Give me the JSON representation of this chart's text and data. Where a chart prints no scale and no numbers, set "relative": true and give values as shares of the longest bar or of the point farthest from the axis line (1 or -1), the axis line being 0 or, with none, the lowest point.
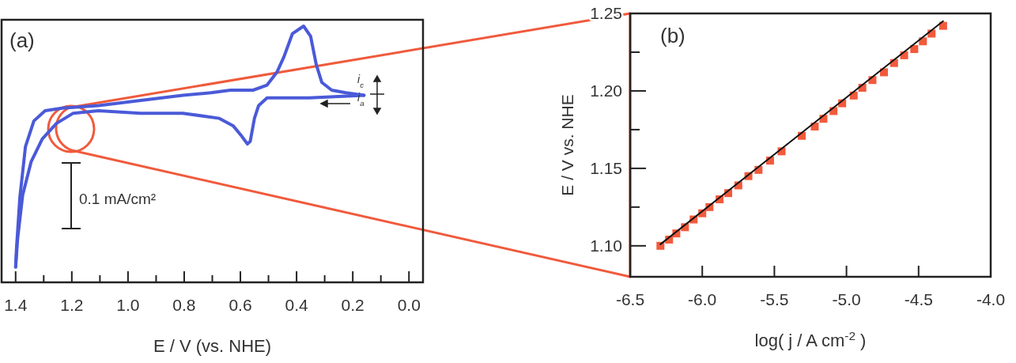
{
  "chart_data": [
    {
      "type": "line",
      "relative": true,
      "xlabel": "E / V (vs. NHE)",
      "tick_labels": "x",
      "annotations": [
        "(a)",
        "0.1 mA/cm²",
        "i$_{c}$",
        "i$_{a}$"
      ],
      "xlim": [
        1.45,
        -0.05
      ],
      "xticks": [
        {
          "value": 1.4,
          "label": "1.4"
        },
        {
          "value": 1.3,
          "label": null
        },
        {
          "value": 1.2,
          "label": "1.2"
        },
        {
          "value": 1.1,
          "label": null
        },
        {
          "value": 1.0,
          "label": "1.0"
        },
        {
          "value": 0.9,
          "label": null
        },
        {
          "value": 0.8,
          "label": "0.8"
        },
        {
          "value": 0.7,
          "label": null
        },
        {
          "value": 0.6,
          "label": "0.6"
        },
        {
          "value": 0.5,
          "label": null
        },
        {
          "value": 0.4,
          "label": "0.4"
        },
        {
          "value": 0.3,
          "label": null
        },
        {
          "value": 0.2,
          "label": "0.2"
        },
        {
          "value": 0.1,
          "label": null
        },
        {
          "value": 0.0,
          "label": "0.0"
        }
      ],
      "series": [
        {
          "color": "#4a5ad8",
          "x": [
            0.16,
            0.355,
            0.505,
            0.535,
            0.55,
            0.565,
            0.575,
            0.595,
            0.625,
            0.675,
            0.805,
            0.955,
            1.105,
            1.195,
            1.255,
            1.305,
            1.345,
            1.375,
            1.393,
            1.4
          ],
          "values": [
            0.73,
            0.72,
            0.72,
            0.69,
            0.64,
            0.55,
            0.54,
            0.57,
            0.61,
            0.64,
            0.66,
            0.66,
            0.67,
            0.66,
            0.62,
            0.56,
            0.47,
            0.34,
            0.17,
            0.06
          ]
        },
        {
          "color": "#4a5ad8",
          "x": [
            1.4,
            1.397,
            1.385,
            1.365,
            1.335,
            1.295,
            1.235,
            1.105,
            0.955,
            0.805,
            0.705,
            0.635,
            0.555,
            0.505,
            0.47,
            0.445,
            0.415,
            0.375,
            0.35,
            0.33,
            0.31,
            0.275,
            0.225,
            0.16
          ],
          "values": [
            0.06,
            0.13,
            0.33,
            0.53,
            0.63,
            0.67,
            0.68,
            0.69,
            0.71,
            0.73,
            0.74,
            0.75,
            0.75,
            0.77,
            0.82,
            0.88,
            0.97,
            1,
            0.96,
            0.85,
            0.78,
            0.75,
            0.74,
            0.73
          ]
        }
      ]
    },
    {
      "type": "scatter",
      "xlabel": "log( j / A cm$^{-2}$ )",
      "ylabel": "E / V vs. NHE",
      "annotations": [
        "(b)"
      ],
      "xlim": [
        -6.5,
        -4.0
      ],
      "ylim": [
        1.08,
        1.25
      ],
      "xticks": [
        {
          "value": -6.5,
          "label": "-6.5"
        },
        {
          "value": -6.0,
          "label": "-6.0"
        },
        {
          "value": -5.5,
          "label": "-5.5"
        },
        {
          "value": -5.0,
          "label": "-5.0"
        },
        {
          "value": -4.5,
          "label": "-4.5"
        },
        {
          "value": -4.0,
          "label": "-4.0"
        }
      ],
      "yticks": [
        {
          "value": 1.1,
          "label": "1.10"
        },
        {
          "value": 1.125,
          "label": null
        },
        {
          "value": 1.15,
          "label": "1.15"
        },
        {
          "value": 1.175,
          "label": null
        },
        {
          "value": 1.2,
          "label": "1.20"
        },
        {
          "value": 1.225,
          "label": null
        },
        {
          "value": 1.25,
          "label": "1.25"
        }
      ],
      "series": [
        {
          "type": "scatter",
          "marker": "square",
          "color": "#f25a3c",
          "x": [
            -6.29,
            -6.23,
            -6.18,
            -6.12,
            -6.06,
            -6.0,
            -5.95,
            -5.88,
            -5.82,
            -5.75,
            -5.68,
            -5.61,
            -5.53,
            -5.45,
            -5.31,
            -5.22,
            -5.16,
            -5.09,
            -5.03,
            -4.95,
            -4.89,
            -4.82,
            -4.74,
            -4.67,
            -4.6,
            -4.53,
            -4.47,
            -4.41,
            -4.33
          ],
          "values": [
            1.1,
            1.104,
            1.108,
            1.112,
            1.117,
            1.121,
            1.125,
            1.13,
            1.134,
            1.139,
            1.145,
            1.149,
            1.155,
            1.161,
            1.171,
            1.177,
            1.182,
            1.187,
            1.192,
            1.197,
            1.202,
            1.207,
            1.212,
            1.218,
            1.223,
            1.227,
            1.232,
            1.237,
            1.242
          ]
        },
        {
          "type": "line",
          "color": "#111111",
          "x": [
            -6.29,
            -4.33
          ],
          "values": [
            1.101,
            1.245
          ]
        }
      ]
    }
  ]
}
